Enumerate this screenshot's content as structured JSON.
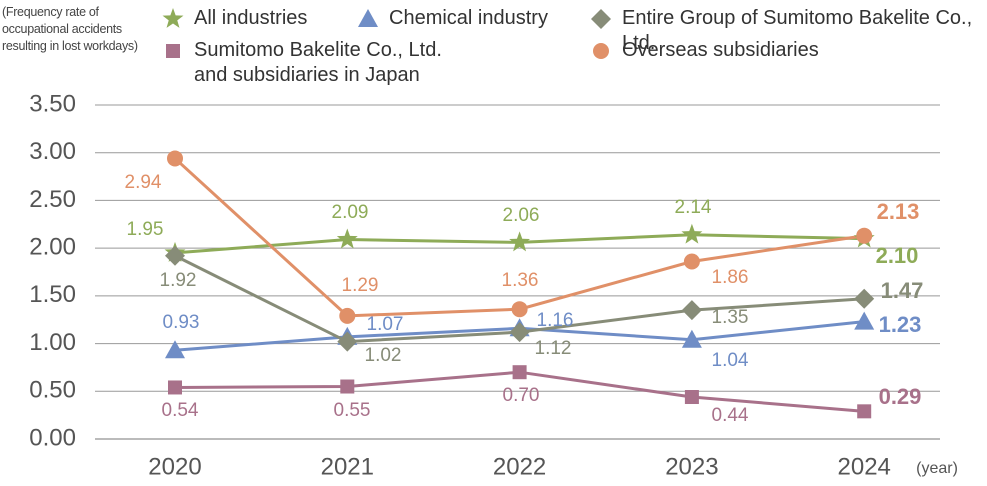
{
  "chart_data": {
    "type": "line",
    "y_label": "(Frequency rate of occupational accidents resulting in lost workdays)",
    "x_unit": "(year)",
    "categories": [
      "2020",
      "2021",
      "2022",
      "2023",
      "2024"
    ],
    "ylim": [
      0,
      3.5
    ],
    "yticks": [
      {
        "value": 0,
        "label": "0.00"
      },
      {
        "value": 0.5,
        "label": "0.50"
      },
      {
        "value": 1,
        "label": "1.00"
      },
      {
        "value": 1.5,
        "label": "1.50"
      },
      {
        "value": 2,
        "label": "2.00"
      },
      {
        "value": 2.5,
        "label": "2.50"
      },
      {
        "value": 3,
        "label": "3.00"
      },
      {
        "value": 3.5,
        "label": "3.50"
      }
    ],
    "grid": true,
    "series": [
      {
        "name": "All industries",
        "color": "#8eab58",
        "marker": "star",
        "values": [
          1.95,
          2.09,
          2.06,
          2.14,
          2.1
        ],
        "value_labels": [
          "1.95",
          "2.09",
          "2.06",
          "2.14",
          "2.10"
        ]
      },
      {
        "name": "Chemical industry",
        "color": "#6f8dc6",
        "marker": "triangle",
        "values": [
          0.93,
          1.07,
          1.16,
          1.04,
          1.23
        ],
        "value_labels": [
          "0.93",
          "1.07",
          "1.16",
          "1.04",
          "1.23"
        ]
      },
      {
        "name": "Entire Group of Sumitomo Bakelite Co., Ltd.",
        "color": "#878c78",
        "marker": "diamond",
        "values": [
          1.92,
          1.02,
          1.12,
          1.35,
          1.47
        ],
        "value_labels": [
          "1.92",
          "1.02",
          "1.12",
          "1.35",
          "1.47"
        ]
      },
      {
        "name": "Sumitomo Bakelite Co., Ltd. and subsidiaries in Japan",
        "color": "#a8718a",
        "marker": "square",
        "values": [
          0.54,
          0.55,
          0.7,
          0.44,
          0.29
        ],
        "value_labels": [
          "0.54",
          "0.55",
          "0.70",
          "0.44",
          "0.29"
        ]
      },
      {
        "name": "Overseas subsidiaries",
        "color": "#e09068",
        "marker": "circle",
        "values": [
          2.94,
          1.29,
          1.36,
          1.86,
          2.13
        ],
        "value_labels": [
          "2.94",
          "1.29",
          "1.36",
          "1.86",
          "2.13"
        ]
      }
    ]
  }
}
